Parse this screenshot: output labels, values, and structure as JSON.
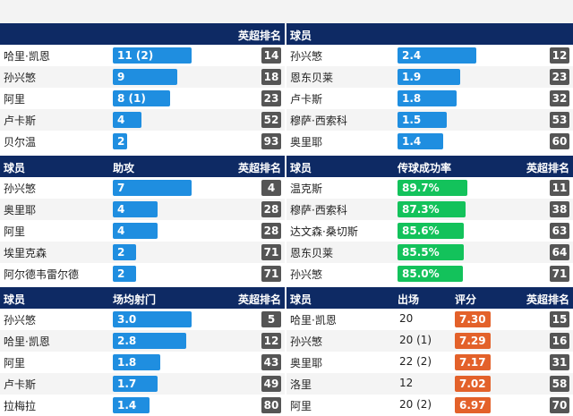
{
  "labels": {
    "player": "球员",
    "rank": "英超排名",
    "assists": "助攻",
    "pass_rate": "传球成功率",
    "shots_per_game": "场均射门",
    "apps": "出场",
    "rating": "评分"
  },
  "goals_table": {
    "rows": [
      {
        "name": "哈里·凯恩",
        "value": "11 (2)",
        "fill": 1.0,
        "rank": "14"
      },
      {
        "name": "孙兴慜",
        "value": "9",
        "fill": 0.82,
        "rank": "18"
      },
      {
        "name": "阿里",
        "value": "8 (1)",
        "fill": 0.73,
        "rank": "23"
      },
      {
        "name": "卢卡斯",
        "value": "4",
        "fill": 0.36,
        "rank": "52"
      },
      {
        "name": "贝尔温",
        "value": "2",
        "fill": 0.18,
        "rank": "93"
      }
    ]
  },
  "key_passes_table": {
    "rows": [
      {
        "name": "孙兴慜",
        "value": "2.4",
        "fill": 1.0,
        "rank": "12"
      },
      {
        "name": "恩东贝莱",
        "value": "1.9",
        "fill": 0.79,
        "rank": "23"
      },
      {
        "name": "卢卡斯",
        "value": "1.8",
        "fill": 0.75,
        "rank": "32"
      },
      {
        "name": "穆萨·西索科",
        "value": "1.5",
        "fill": 0.63,
        "rank": "53"
      },
      {
        "name": "奥里耶",
        "value": "1.4",
        "fill": 0.58,
        "rank": "60"
      }
    ]
  },
  "assists_table": {
    "rows": [
      {
        "name": "孙兴慜",
        "value": "7",
        "fill": 1.0,
        "rank": "4"
      },
      {
        "name": "奥里耶",
        "value": "4",
        "fill": 0.57,
        "rank": "28"
      },
      {
        "name": "阿里",
        "value": "4",
        "fill": 0.57,
        "rank": "28"
      },
      {
        "name": "埃里克森",
        "value": "2",
        "fill": 0.29,
        "rank": "71"
      },
      {
        "name": "阿尔德韦雷尔德",
        "value": "2",
        "fill": 0.29,
        "rank": "71"
      }
    ]
  },
  "pass_table": {
    "rows": [
      {
        "name": "温克斯",
        "value": "89.7%",
        "fill": 1.0,
        "rank": "11"
      },
      {
        "name": "穆萨·西索科",
        "value": "87.3%",
        "fill": 0.97,
        "rank": "38"
      },
      {
        "name": "达文森·桑切斯",
        "value": "85.6%",
        "fill": 0.95,
        "rank": "63"
      },
      {
        "name": "恩东贝莱",
        "value": "85.5%",
        "fill": 0.95,
        "rank": "64"
      },
      {
        "name": "孙兴慜",
        "value": "85.0%",
        "fill": 0.94,
        "rank": "71"
      }
    ]
  },
  "shots_table": {
    "rows": [
      {
        "name": "孙兴慜",
        "value": "3.0",
        "fill": 1.0,
        "rank": "5"
      },
      {
        "name": "哈里·凯恩",
        "value": "2.8",
        "fill": 0.93,
        "rank": "12"
      },
      {
        "name": "阿里",
        "value": "1.8",
        "fill": 0.6,
        "rank": "43"
      },
      {
        "name": "卢卡斯",
        "value": "1.7",
        "fill": 0.57,
        "rank": "49"
      },
      {
        "name": "拉梅拉",
        "value": "1.4",
        "fill": 0.47,
        "rank": "80"
      }
    ]
  },
  "rating_table": {
    "rows": [
      {
        "name": "哈里·凯恩",
        "apps": "20",
        "rating": "7.30",
        "rank": "15"
      },
      {
        "name": "孙兴慜",
        "apps": "20 (1)",
        "rating": "7.29",
        "rank": "16"
      },
      {
        "name": "奥里耶",
        "apps": "22 (2)",
        "rating": "7.17",
        "rank": "31"
      },
      {
        "name": "洛里",
        "apps": "12",
        "rating": "7.02",
        "rank": "58"
      },
      {
        "name": "阿里",
        "apps": "20 (2)",
        "rating": "6.97",
        "rank": "70"
      }
    ]
  },
  "colors": {
    "header": "#0e2a64",
    "blue_bar": "#1f8ee0",
    "green_bar": "#13c25b",
    "orange_bar": "#e3612a",
    "rank_box": "#555555"
  }
}
